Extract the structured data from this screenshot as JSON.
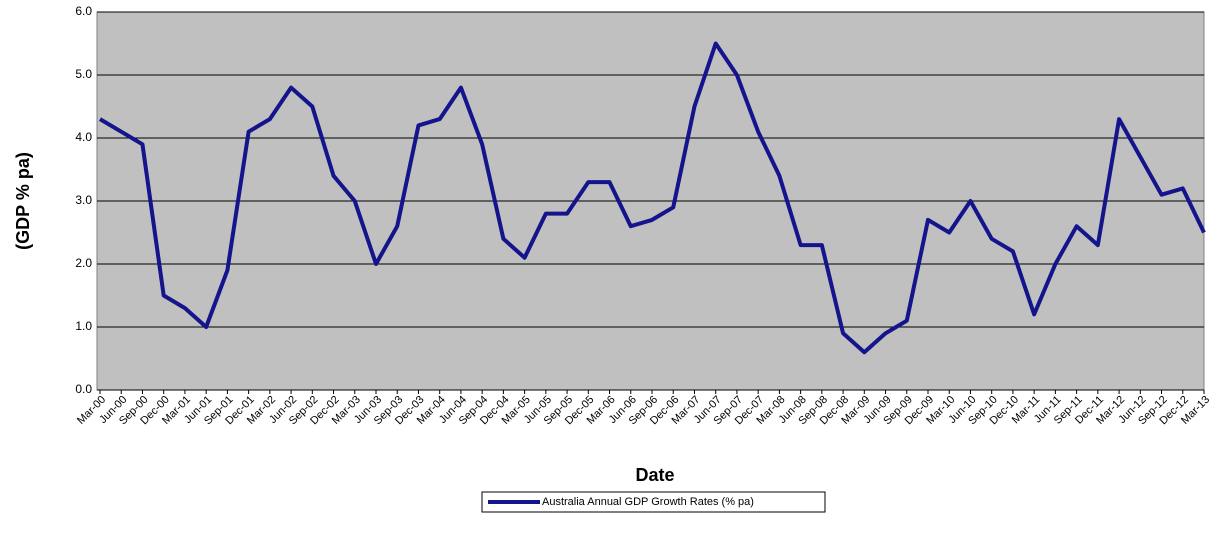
{
  "chart_data": {
    "type": "line",
    "x_label": "Date",
    "y_label": "(GDP % pa)",
    "categories": [
      "Mar-00",
      "Jun-00",
      "Sep-00",
      "Dec-00",
      "Mar-01",
      "Jun-01",
      "Sep-01",
      "Dec-01",
      "Mar-02",
      "Jun-02",
      "Sep-02",
      "Dec-02",
      "Mar-03",
      "Jun-03",
      "Sep-03",
      "Dec-03",
      "Mar-04",
      "Jun-04",
      "Sep-04",
      "Dec-04",
      "Mar-05",
      "Jun-05",
      "Sep-05",
      "Dec-05",
      "Mar-06",
      "Jun-06",
      "Sep-06",
      "Dec-06",
      "Mar-07",
      "Jun-07",
      "Sep-07",
      "Dec-07",
      "Mar-08",
      "Jun-08",
      "Sep-08",
      "Dec-08",
      "Mar-09",
      "Jun-09",
      "Sep-09",
      "Dec-09",
      "Mar-10",
      "Jun-10",
      "Sep-10",
      "Dec-10",
      "Mar-11",
      "Jun-11",
      "Sep-11",
      "Dec-11",
      "Mar-12",
      "Jun-12",
      "Sep-12",
      "Dec-12",
      "Mar-13"
    ],
    "series": [
      {
        "name": "Australia Annual GDP Growth Rates (% pa)",
        "color": "#14148c",
        "values": [
          4.3,
          4.1,
          3.9,
          1.5,
          1.3,
          1.0,
          1.9,
          4.1,
          4.3,
          4.8,
          4.5,
          3.4,
          3.0,
          2.0,
          2.6,
          4.2,
          4.3,
          4.8,
          3.9,
          2.4,
          2.1,
          2.8,
          2.8,
          3.3,
          3.3,
          2.6,
          2.7,
          2.9,
          4.5,
          5.5,
          5.0,
          4.1,
          3.4,
          2.3,
          2.3,
          0.9,
          0.6,
          0.9,
          1.1,
          2.7,
          2.5,
          3.0,
          2.4,
          2.2,
          1.2,
          2.0,
          2.6,
          2.3,
          4.3,
          3.7,
          3.1,
          3.2,
          2.5
        ]
      }
    ],
    "ylim": [
      0,
      6
    ],
    "yticks": [
      {
        "value": 0,
        "label": "0.0"
      },
      {
        "value": 1,
        "label": "1.0"
      },
      {
        "value": 2,
        "label": "2.0"
      },
      {
        "value": 3,
        "label": "3.0"
      },
      {
        "value": 4,
        "label": "4.0"
      },
      {
        "value": 5,
        "label": "5.0"
      },
      {
        "value": 6,
        "label": "6.0"
      }
    ],
    "grid": true,
    "plot_background": "#c0c0c0",
    "legend": "bottom"
  }
}
